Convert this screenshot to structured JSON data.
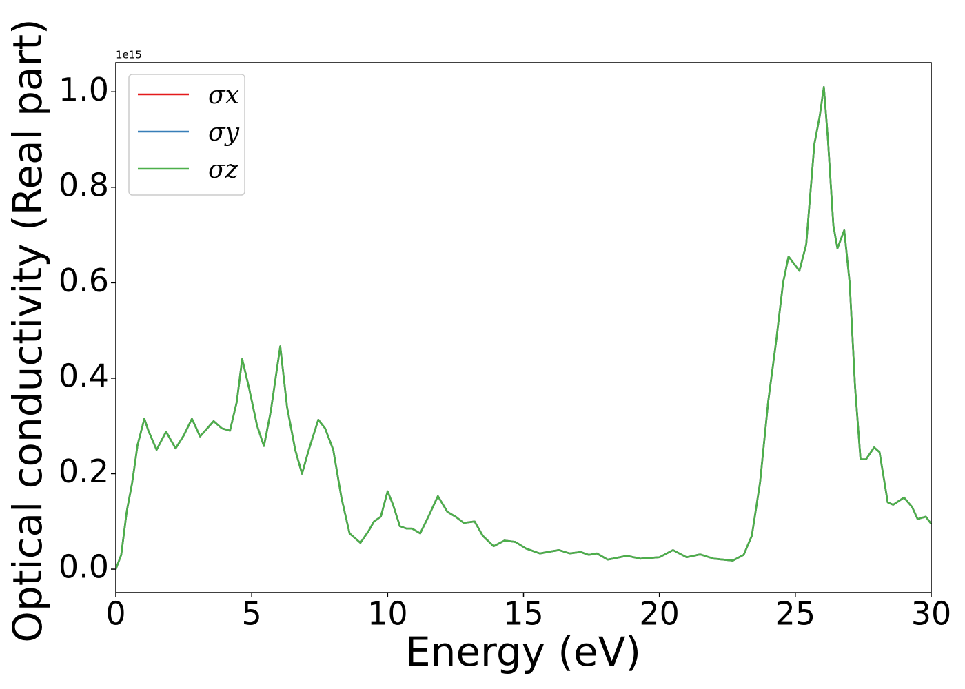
{
  "chart_data": {
    "type": "line",
    "xlabel": "Energy (eV)",
    "ylabel": "Optical conductivity (Real part)",
    "y_offset_label": "1e15",
    "x": [
      0,
      0.2,
      0.4,
      0.6,
      0.8,
      1.05,
      1.2,
      1.5,
      1.85,
      2.2,
      2.5,
      2.8,
      3.1,
      3.6,
      3.9,
      4.2,
      4.45,
      4.65,
      4.9,
      5.2,
      5.45,
      5.7,
      6.05,
      6.3,
      6.6,
      6.85,
      7.1,
      7.45,
      7.7,
      8.0,
      8.3,
      8.6,
      9.0,
      9.3,
      9.5,
      9.75,
      10.0,
      10.2,
      10.45,
      10.7,
      10.9,
      11.2,
      11.5,
      11.85,
      12.2,
      12.5,
      12.8,
      13.2,
      13.5,
      13.9,
      14.3,
      14.7,
      15.1,
      15.6,
      16.3,
      16.7,
      17.1,
      17.4,
      17.7,
      18.1,
      18.8,
      19.3,
      20.0,
      20.5,
      21.0,
      21.5,
      22.0,
      22.7,
      23.1,
      23.4,
      23.7,
      24.0,
      24.3,
      24.55,
      24.75,
      25.15,
      25.4,
      25.7,
      25.9,
      26.05,
      26.2,
      26.4,
      26.55,
      26.8,
      27.0,
      27.2,
      27.4,
      27.6,
      27.9,
      28.1,
      28.4,
      28.6,
      29.0,
      29.3,
      29.5,
      29.8,
      30.0
    ],
    "series": [
      {
        "name": "σx",
        "color": "#e41a1c",
        "values": [
          0.0,
          0.03,
          0.12,
          0.18,
          0.26,
          0.315,
          0.29,
          0.25,
          0.288,
          0.253,
          0.28,
          0.315,
          0.278,
          0.31,
          0.295,
          0.29,
          0.35,
          0.44,
          0.38,
          0.3,
          0.258,
          0.33,
          0.467,
          0.34,
          0.25,
          0.2,
          0.25,
          0.313,
          0.295,
          0.25,
          0.15,
          0.075,
          0.055,
          0.08,
          0.1,
          0.11,
          0.163,
          0.135,
          0.09,
          0.085,
          0.085,
          0.075,
          0.11,
          0.153,
          0.12,
          0.11,
          0.097,
          0.1,
          0.07,
          0.048,
          0.06,
          0.057,
          0.043,
          0.033,
          0.04,
          0.033,
          0.036,
          0.03,
          0.033,
          0.02,
          0.028,
          0.022,
          0.025,
          0.04,
          0.025,
          0.031,
          0.022,
          0.018,
          0.03,
          0.07,
          0.18,
          0.35,
          0.48,
          0.6,
          0.655,
          0.625,
          0.68,
          0.89,
          0.95,
          1.01,
          0.9,
          0.72,
          0.672,
          0.71,
          0.6,
          0.38,
          0.23,
          0.23,
          0.255,
          0.245,
          0.14,
          0.135,
          0.15,
          0.13,
          0.105,
          0.11,
          0.095
        ]
      },
      {
        "name": "σy",
        "color": "#377eb8",
        "values": [
          0.0,
          0.03,
          0.12,
          0.18,
          0.26,
          0.315,
          0.29,
          0.25,
          0.288,
          0.253,
          0.28,
          0.315,
          0.278,
          0.31,
          0.295,
          0.29,
          0.35,
          0.44,
          0.38,
          0.3,
          0.258,
          0.33,
          0.467,
          0.34,
          0.25,
          0.2,
          0.25,
          0.313,
          0.295,
          0.25,
          0.15,
          0.075,
          0.055,
          0.08,
          0.1,
          0.11,
          0.163,
          0.135,
          0.09,
          0.085,
          0.085,
          0.075,
          0.11,
          0.153,
          0.12,
          0.11,
          0.097,
          0.1,
          0.07,
          0.048,
          0.06,
          0.057,
          0.043,
          0.033,
          0.04,
          0.033,
          0.036,
          0.03,
          0.033,
          0.02,
          0.028,
          0.022,
          0.025,
          0.04,
          0.025,
          0.031,
          0.022,
          0.018,
          0.03,
          0.07,
          0.18,
          0.35,
          0.48,
          0.6,
          0.655,
          0.625,
          0.68,
          0.89,
          0.95,
          1.01,
          0.9,
          0.72,
          0.672,
          0.71,
          0.6,
          0.38,
          0.23,
          0.23,
          0.255,
          0.245,
          0.14,
          0.135,
          0.15,
          0.13,
          0.105,
          0.11,
          0.095
        ]
      },
      {
        "name": "σz",
        "color": "#4daf4a",
        "values": [
          0.0,
          0.03,
          0.12,
          0.18,
          0.26,
          0.315,
          0.29,
          0.25,
          0.288,
          0.253,
          0.28,
          0.315,
          0.278,
          0.31,
          0.295,
          0.29,
          0.35,
          0.44,
          0.38,
          0.3,
          0.258,
          0.33,
          0.467,
          0.34,
          0.25,
          0.2,
          0.25,
          0.313,
          0.295,
          0.25,
          0.15,
          0.075,
          0.055,
          0.08,
          0.1,
          0.11,
          0.163,
          0.135,
          0.09,
          0.085,
          0.085,
          0.075,
          0.11,
          0.153,
          0.12,
          0.11,
          0.097,
          0.1,
          0.07,
          0.048,
          0.06,
          0.057,
          0.043,
          0.033,
          0.04,
          0.033,
          0.036,
          0.03,
          0.033,
          0.02,
          0.028,
          0.022,
          0.025,
          0.04,
          0.025,
          0.031,
          0.022,
          0.018,
          0.03,
          0.07,
          0.18,
          0.35,
          0.48,
          0.6,
          0.655,
          0.625,
          0.68,
          0.89,
          0.95,
          1.01,
          0.9,
          0.72,
          0.672,
          0.71,
          0.6,
          0.38,
          0.23,
          0.23,
          0.255,
          0.245,
          0.14,
          0.135,
          0.15,
          0.13,
          0.105,
          0.11,
          0.095
        ]
      }
    ],
    "xlim": [
      0,
      30
    ],
    "xticks": [
      0,
      5,
      10,
      15,
      20,
      25,
      30
    ],
    "ylim": [
      -0.049,
      1.061
    ],
    "yticks": [
      {
        "value": 0,
        "label": "0.0"
      },
      0.2,
      0.4,
      0.6,
      0.8,
      {
        "value": 1,
        "label": "1.0"
      }
    ],
    "legend": "upper left",
    "grid": false
  }
}
